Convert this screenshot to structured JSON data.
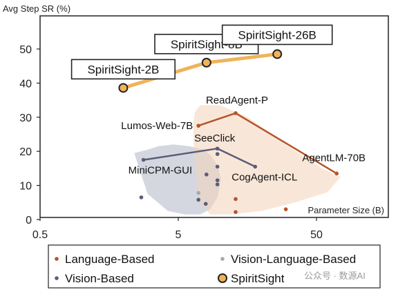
{
  "chart_data": {
    "type": "scatter",
    "ylabel": "Avg Step SR (%)",
    "xlabel": "Parameter Size (B)",
    "x_scale": "log",
    "xlim": [
      0.5,
      100
    ],
    "ylim": [
      0,
      55
    ],
    "x_ticks": [
      0.5,
      5,
      50
    ],
    "y_ticks": [
      0,
      10,
      20,
      30,
      40,
      50
    ],
    "grid": false,
    "legend_position": "bottom",
    "regions": [
      {
        "group": "Vision-Based",
        "color": "#b3b7c7",
        "x": [
          2.4,
          3.0,
          3.6,
          4.6,
          6.0,
          7.6,
          8.5,
          9.6,
          10.2,
          9.6,
          8.5,
          7.2,
          5.6,
          4.2,
          3.0
        ],
        "y": [
          19.5,
          20.5,
          21.5,
          22.0,
          21.5,
          20.5,
          19.0,
          16.0,
          12.0,
          6.5,
          3.0,
          1.5,
          1.5,
          2.5,
          7.5
        ]
      },
      {
        "group": "Language-Based",
        "color": "#f3d3b8",
        "x": [
          6.4,
          6.6,
          7.2,
          10.0,
          16.0,
          30.0,
          55.0,
          75.0,
          60.0,
          35.0,
          20.0,
          12.0,
          8.5,
          7.2,
          6.8,
          6.5
        ],
        "y": [
          28.0,
          31.5,
          33.5,
          33.5,
          30.0,
          22.0,
          15.0,
          12.5,
          8.0,
          5.0,
          2.5,
          1.5,
          1.5,
          5.0,
          12.0,
          20.0
        ]
      }
    ],
    "series": [
      {
        "name": "Language-Based",
        "marker": "dot",
        "color": "#b5532a",
        "points": [
          {
            "x": 7,
            "y": 27.5,
            "label": "Lumos-Web-7B"
          },
          {
            "x": 13,
            "y": 31.2,
            "label": "ReadAgent-P"
          },
          {
            "x": 70,
            "y": 13.5,
            "label": "AgentLM-70B"
          },
          {
            "x": 13,
            "y": 6
          },
          {
            "x": 13,
            "y": 2.2
          },
          {
            "x": 30,
            "y": 3
          }
        ],
        "lines": [
          [
            0,
            1,
            2
          ]
        ]
      },
      {
        "name": "Vision-Language-Based",
        "marker": "dot",
        "color": "#a9a9a9",
        "points": [
          {
            "x": 7.0,
            "y": 7.8
          }
        ]
      },
      {
        "name": "Vision-Based",
        "marker": "dot",
        "color": "#5a5c78",
        "points": [
          {
            "x": 2.8,
            "y": 17.5,
            "label": "MiniCPM-GUI"
          },
          {
            "x": 9.6,
            "y": 20.8,
            "label": "SeeClick"
          },
          {
            "x": 18,
            "y": 15.5,
            "label": "CogAgent-ICL"
          },
          {
            "x": 9.6,
            "y": 19.2
          },
          {
            "x": 9.6,
            "y": 15.5
          },
          {
            "x": 9.6,
            "y": 11.5
          },
          {
            "x": 9.6,
            "y": 10.3
          },
          {
            "x": 8.0,
            "y": 13.2
          },
          {
            "x": 7.0,
            "y": 5.8
          },
          {
            "x": 7.9,
            "y": 4.6
          },
          {
            "x": 2.7,
            "y": 6.5
          }
        ],
        "lines": [
          [
            0,
            1,
            2
          ]
        ]
      },
      {
        "name": "SpiritSight",
        "marker": "ring",
        "color": "#f0b35a",
        "points": [
          {
            "x": 2.0,
            "y": 38.6,
            "label": "SpiritSight-2B"
          },
          {
            "x": 8.0,
            "y": 46.0,
            "label": "SpiritSight-8B"
          },
          {
            "x": 26.0,
            "y": 48.5,
            "label": "SpiritSight-26B"
          }
        ],
        "lines": [
          [
            0,
            1,
            2
          ]
        ]
      }
    ]
  },
  "watermark": "公众号 · 数源AI"
}
